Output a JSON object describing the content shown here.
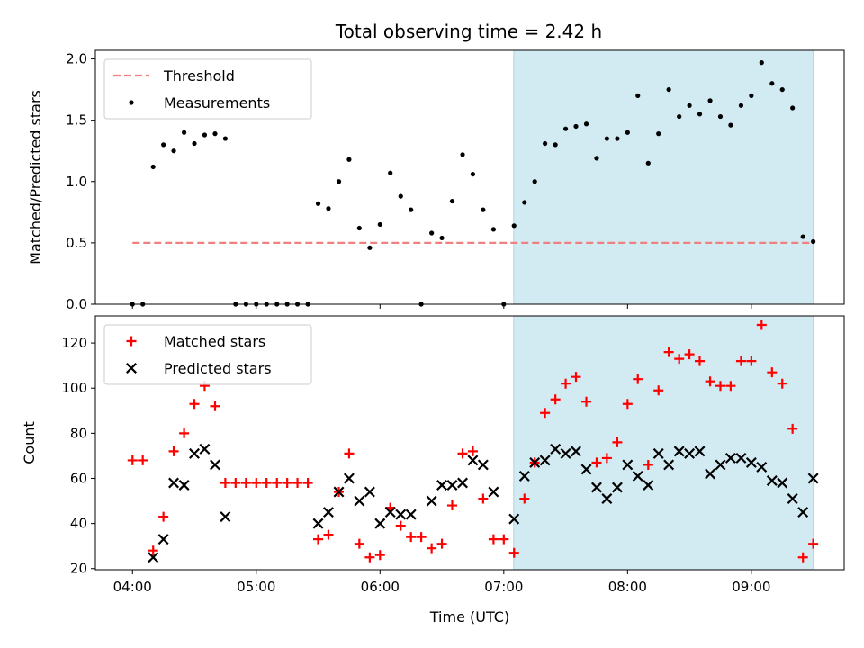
{
  "title": "Total observing time = 2.42 h",
  "colors": {
    "threshold": "#f08080",
    "measurement": "#000000",
    "matched": "#ff0000",
    "predicted": "#000000",
    "observing_span": "#add8e6"
  },
  "chart_data": [
    {
      "type": "scatter",
      "ylabel": "Matched/Predicted stars",
      "xlim": [
        3.7,
        9.75
      ],
      "ylim": [
        0.0,
        2.07
      ],
      "yticks": [
        0.0,
        0.5,
        1.0,
        1.5,
        2.0
      ],
      "ytick_labels": [
        "0.0",
        "0.5",
        "1.0",
        "1.5",
        "2.0"
      ],
      "grid": false,
      "legend_position": "upper-left",
      "shaded_span": [
        7.08,
        9.5
      ],
      "series": [
        {
          "name": "Threshold",
          "kind": "dashed-line",
          "x": [
            4.0,
            9.5
          ],
          "y": [
            0.5,
            0.5
          ]
        },
        {
          "name": "Measurements",
          "kind": "points",
          "x": [
            4.0,
            4.083,
            4.167,
            4.25,
            4.333,
            4.417,
            4.5,
            4.583,
            4.667,
            4.75,
            4.833,
            4.917,
            5.0,
            5.083,
            5.167,
            5.25,
            5.333,
            5.417,
            5.5,
            5.583,
            5.667,
            5.75,
            5.833,
            5.917,
            6.0,
            6.083,
            6.167,
            6.25,
            6.333,
            6.417,
            6.5,
            6.583,
            6.667,
            6.75,
            6.833,
            6.917,
            7.0,
            7.083,
            7.167,
            7.25,
            7.333,
            7.417,
            7.5,
            7.583,
            7.667,
            7.75,
            7.833,
            7.917,
            8.0,
            8.083,
            8.167,
            8.25,
            8.333,
            8.417,
            8.5,
            8.583,
            8.667,
            8.75,
            8.833,
            8.917,
            9.0,
            9.083,
            9.167,
            9.25,
            9.333,
            9.417,
            9.5
          ],
          "y": [
            0.0,
            0.0,
            1.12,
            1.3,
            1.25,
            1.4,
            1.31,
            1.38,
            1.39,
            1.35,
            0.0,
            0.0,
            0.0,
            0.0,
            0.0,
            0.0,
            0.0,
            0.0,
            0.82,
            0.78,
            1.0,
            1.18,
            0.62,
            0.46,
            0.65,
            1.07,
            0.88,
            0.77,
            0.0,
            0.58,
            0.54,
            0.84,
            1.22,
            1.06,
            0.77,
            0.61,
            0.0,
            0.64,
            0.83,
            1.0,
            1.31,
            1.3,
            1.43,
            1.45,
            1.47,
            1.19,
            1.35,
            1.35,
            1.4,
            1.7,
            1.15,
            1.39,
            1.75,
            1.53,
            1.62,
            1.55,
            1.66,
            1.53,
            1.46,
            1.62,
            1.7,
            1.97,
            1.8,
            1.75,
            1.6,
            0.55,
            0.51
          ]
        }
      ]
    },
    {
      "type": "scatter",
      "ylabel": "Count",
      "xlabel": "Time (UTC)",
      "xlim": [
        3.7,
        9.75
      ],
      "ylim": [
        19.5,
        132.0
      ],
      "yticks": [
        20,
        40,
        60,
        80,
        100,
        120
      ],
      "ytick_labels": [
        "20",
        "40",
        "60",
        "80",
        "100",
        "120"
      ],
      "xticks": [
        4,
        5,
        6,
        7,
        8,
        9
      ],
      "xtick_labels": [
        "04:00",
        "05:00",
        "06:00",
        "07:00",
        "08:00",
        "09:00"
      ],
      "grid": false,
      "legend_position": "upper-left",
      "shaded_span": [
        7.08,
        9.5
      ],
      "series": [
        {
          "name": "Matched stars",
          "kind": "plus",
          "x": [
            4.0,
            4.083,
            4.167,
            4.25,
            4.333,
            4.417,
            4.5,
            4.583,
            4.667,
            4.75,
            4.833,
            4.917,
            5.0,
            5.083,
            5.167,
            5.25,
            5.333,
            5.417,
            5.5,
            5.583,
            5.667,
            5.75,
            5.833,
            5.917,
            6.0,
            6.083,
            6.167,
            6.25,
            6.333,
            6.417,
            6.5,
            6.583,
            6.667,
            6.75,
            6.833,
            6.917,
            7.0,
            7.083,
            7.167,
            7.25,
            7.333,
            7.417,
            7.5,
            7.583,
            7.667,
            7.75,
            7.833,
            7.917,
            8.0,
            8.083,
            8.167,
            8.25,
            8.333,
            8.417,
            8.5,
            8.583,
            8.667,
            8.75,
            8.833,
            8.917,
            9.0,
            9.083,
            9.167,
            9.25,
            9.333,
            9.417,
            9.5
          ],
          "y": [
            68,
            68,
            28,
            43,
            72,
            80,
            93,
            101,
            92,
            58,
            58,
            58,
            58,
            58,
            58,
            58,
            58,
            58,
            33,
            35,
            54,
            71,
            31,
            25,
            26,
            47,
            39,
            34,
            34,
            29,
            31,
            48,
            71,
            72,
            51,
            33,
            33,
            27,
            51,
            67,
            89,
            95,
            102,
            105,
            94,
            67,
            69,
            76,
            93,
            104,
            66,
            99,
            116,
            113,
            115,
            112,
            103,
            101,
            101,
            112,
            112,
            128,
            107,
            102,
            82,
            25,
            31
          ]
        },
        {
          "name": "Predicted stars",
          "kind": "x",
          "x": [
            4.167,
            4.25,
            4.333,
            4.417,
            4.5,
            4.583,
            4.667,
            4.75,
            5.5,
            5.583,
            5.667,
            5.75,
            5.833,
            5.917,
            6.0,
            6.083,
            6.167,
            6.25,
            6.417,
            6.5,
            6.583,
            6.667,
            6.75,
            6.833,
            6.917,
            7.083,
            7.167,
            7.25,
            7.333,
            7.417,
            7.5,
            7.583,
            7.667,
            7.75,
            7.833,
            7.917,
            8.0,
            8.083,
            8.167,
            8.25,
            8.333,
            8.417,
            8.5,
            8.583,
            8.667,
            8.75,
            8.833,
            8.917,
            9.0,
            9.083,
            9.167,
            9.25,
            9.333,
            9.417,
            9.5
          ],
          "y": [
            25,
            33,
            58,
            57,
            71,
            73,
            66,
            43,
            40,
            45,
            54,
            60,
            50,
            54,
            40,
            45,
            44,
            44,
            50,
            57,
            57,
            58,
            68,
            66,
            54,
            42,
            61,
            67,
            68,
            73,
            71,
            72,
            64,
            56,
            51,
            56,
            66,
            61,
            57,
            71,
            66,
            72,
            71,
            72,
            62,
            66,
            69,
            69,
            67,
            65,
            59,
            58,
            51,
            45,
            60
          ]
        }
      ]
    }
  ]
}
